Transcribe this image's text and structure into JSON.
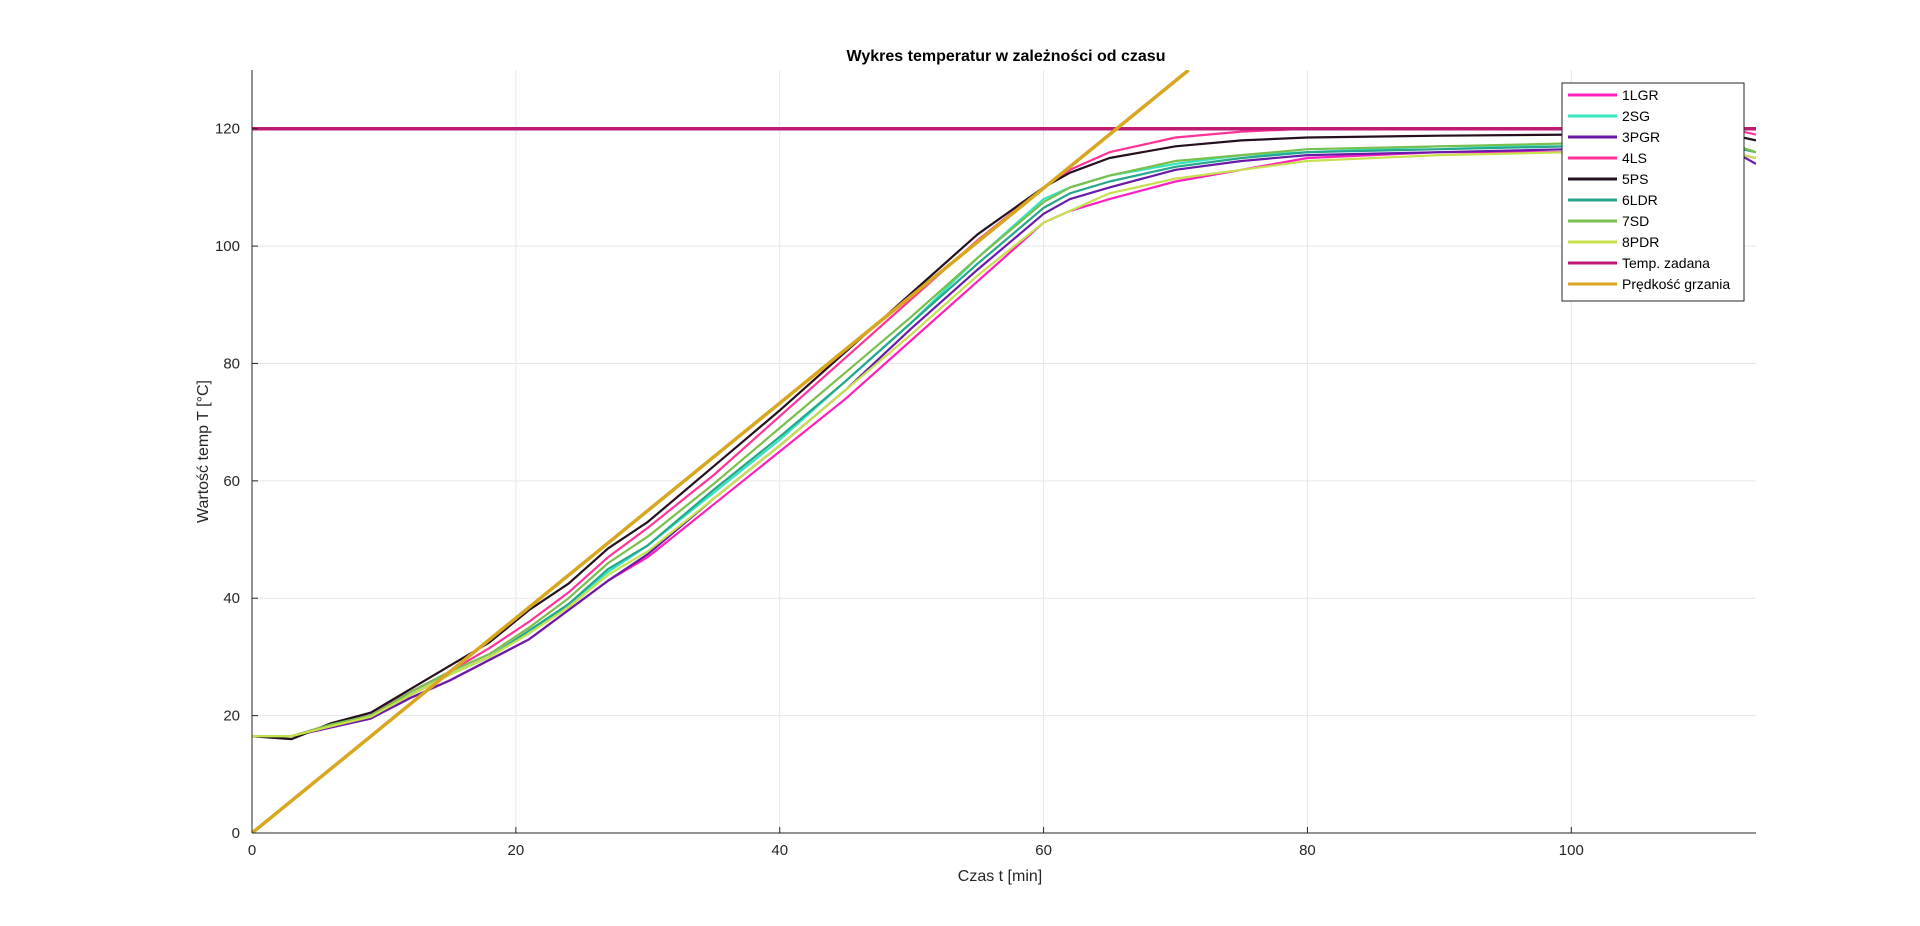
{
  "chart_data": {
    "type": "line",
    "title": "Wykres temperatur w zależności od czasu",
    "xlabel": "Czas t [min]",
    "ylabel": "Wartość temp T [°C]",
    "xlim": [
      0,
      114
    ],
    "ylim": [
      0,
      130
    ],
    "xticks": [
      0,
      20,
      40,
      60,
      80,
      100
    ],
    "yticks": [
      0,
      20,
      40,
      60,
      80,
      100,
      120
    ],
    "grid": true,
    "legend_position": "top-right",
    "series": [
      {
        "name": "1LGR",
        "color": "#ff1fbf",
        "x": [
          0,
          3,
          6,
          9,
          12,
          15,
          18,
          21,
          24,
          27,
          30,
          35,
          40,
          45,
          50,
          55,
          60,
          62,
          65,
          70,
          75,
          80,
          90,
          100,
          112,
          114
        ],
        "y": [
          16.5,
          16.5,
          18,
          19.5,
          23,
          26,
          29.5,
          33,
          38,
          43,
          47,
          56,
          65,
          74,
          84,
          94,
          104,
          106,
          108,
          111,
          113,
          115,
          116,
          116,
          116,
          115
        ]
      },
      {
        "name": "2SG",
        "color": "#33e6c0",
        "x": [
          0,
          3,
          6,
          9,
          12,
          15,
          18,
          21,
          24,
          27,
          30,
          35,
          40,
          45,
          50,
          55,
          60,
          62,
          65,
          70,
          75,
          80,
          90,
          100,
          112,
          114
        ],
        "y": [
          16.5,
          16.5,
          18.3,
          20,
          23.5,
          27,
          30,
          34,
          39,
          44.5,
          49,
          58,
          67,
          77,
          87,
          98,
          108,
          110,
          112,
          114,
          115.5,
          116,
          117,
          117,
          117,
          116
        ]
      },
      {
        "name": "3PGR",
        "color": "#6a1aa8",
        "x": [
          0,
          3,
          6,
          9,
          12,
          15,
          18,
          21,
          24,
          27,
          30,
          35,
          40,
          45,
          50,
          55,
          60,
          62,
          65,
          70,
          75,
          80,
          90,
          100,
          112,
          114
        ],
        "y": [
          16.5,
          16.5,
          18,
          19.5,
          23,
          26,
          29.5,
          33,
          38,
          43,
          47.5,
          57,
          66,
          75.5,
          86,
          96,
          105.5,
          108,
          110,
          113,
          114.5,
          115.5,
          116,
          116.5,
          116.5,
          114
        ]
      },
      {
        "name": "4LS",
        "color": "#ff3399",
        "x": [
          0,
          3,
          6,
          9,
          12,
          15,
          18,
          21,
          24,
          27,
          30,
          35,
          40,
          45,
          50,
          55,
          60,
          62,
          65,
          70,
          75,
          80,
          90,
          100,
          112,
          114
        ],
        "y": [
          16.5,
          16.5,
          18.5,
          20.5,
          24,
          27.5,
          31.5,
          36,
          41,
          47,
          52,
          61,
          71,
          81,
          91,
          101,
          110,
          113,
          116,
          118.5,
          119.5,
          120,
          120,
          120,
          120,
          119
        ]
      },
      {
        "name": "5PS",
        "color": "#24101f",
        "x": [
          0,
          3,
          6,
          9,
          12,
          15,
          18,
          21,
          24,
          27,
          30,
          35,
          40,
          45,
          50,
          55,
          60,
          62,
          65,
          70,
          75,
          80,
          90,
          100,
          112,
          114
        ],
        "y": [
          16.5,
          16,
          18.7,
          20.5,
          24.5,
          28.5,
          32.5,
          38,
          42.5,
          48.5,
          53,
          62.5,
          72,
          82,
          92,
          102,
          110,
          112.5,
          115,
          117,
          118,
          118.5,
          118.8,
          119,
          119,
          118
        ]
      },
      {
        "name": "6LDR",
        "color": "#26a68c",
        "x": [
          0,
          3,
          6,
          9,
          12,
          15,
          18,
          21,
          24,
          27,
          30,
          35,
          40,
          45,
          50,
          55,
          60,
          62,
          65,
          70,
          75,
          80,
          90,
          100,
          112,
          114
        ],
        "y": [
          16.5,
          16.5,
          18.3,
          20,
          23.5,
          27,
          30,
          34.5,
          39,
          45,
          49,
          58.5,
          67.5,
          77,
          87,
          97,
          106.5,
          109,
          111,
          113.5,
          115,
          116,
          116.5,
          117,
          117,
          116
        ]
      },
      {
        "name": "7SD",
        "color": "#7abf4d",
        "x": [
          0,
          3,
          6,
          9,
          12,
          15,
          18,
          21,
          24,
          27,
          30,
          35,
          40,
          45,
          50,
          55,
          60,
          62,
          65,
          70,
          75,
          80,
          90,
          100,
          112,
          114
        ],
        "y": [
          16.5,
          16.5,
          18.5,
          20,
          24,
          27.5,
          30.5,
          35,
          40,
          46,
          50.5,
          59.5,
          69,
          78.5,
          88,
          98,
          107.5,
          110,
          112,
          114.5,
          115.5,
          116.5,
          117,
          117.5,
          117.5,
          116
        ]
      },
      {
        "name": "8PDR",
        "color": "#c7e14d",
        "x": [
          0,
          3,
          6,
          9,
          12,
          15,
          18,
          21,
          24,
          27,
          30,
          35,
          40,
          45,
          50,
          55,
          60,
          62,
          65,
          70,
          75,
          80,
          90,
          100,
          112,
          114
        ],
        "y": [
          16.5,
          16.5,
          18.2,
          19.8,
          23.5,
          27,
          30,
          34,
          38.5,
          44,
          48,
          57,
          66,
          75.5,
          85,
          95,
          104,
          106,
          109,
          111.5,
          113,
          114.5,
          115.5,
          116,
          116,
          115
        ]
      },
      {
        "name": "Temp. zadana",
        "color": "#bf1a73",
        "x": [
          0,
          114
        ],
        "y": [
          120,
          120
        ]
      },
      {
        "name": "Prędkość grzania",
        "color": "#d9a620",
        "x": [
          0,
          71
        ],
        "y": [
          0,
          130
        ]
      }
    ]
  }
}
